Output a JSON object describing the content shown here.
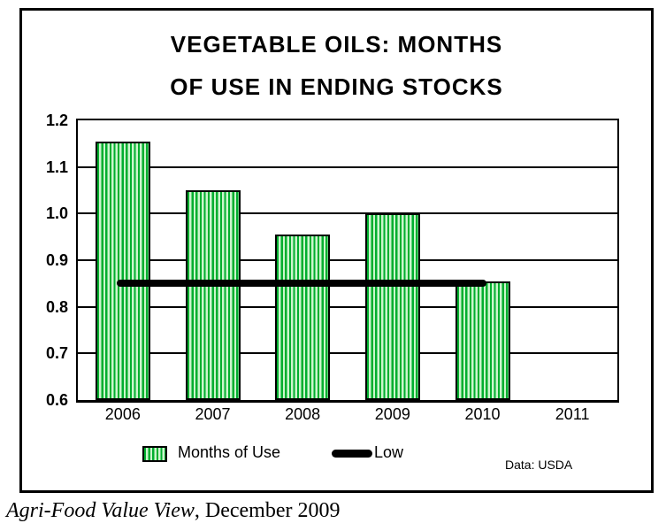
{
  "colors": {
    "bar_stripe_dark": "#00AE2E",
    "bar_stripe_light": "#CCF5CC",
    "line_color": "#000000",
    "text_color": "#000000",
    "background": "#ffffff"
  },
  "chart_data": {
    "type": "bar",
    "title": "VEGETABLE OILS: MONTHS OF USE IN ENDING STOCKS",
    "title_lines": [
      "VEGETABLE OILS: MONTHS",
      "OF USE IN ENDING STOCKS"
    ],
    "categories": [
      "2006",
      "2007",
      "2008",
      "2009",
      "2010",
      "2011"
    ],
    "series": [
      {
        "name": "Months of Use",
        "values": [
          1.155,
          1.05,
          0.955,
          1.0,
          0.855,
          null
        ]
      }
    ],
    "low_line": {
      "name": "Low",
      "value": 0.85,
      "start_category": 0,
      "end_category": 4
    },
    "xlabel": "",
    "ylabel": "",
    "ylim": [
      0.6,
      1.2
    ],
    "ytick_step": 0.1,
    "yticks": [
      "1.2",
      "1.1",
      "1.0",
      "0.9",
      "0.8",
      "0.7",
      "0.6"
    ],
    "grid": true,
    "legend_position": "bottom",
    "bar_fill": "green vertical stripes"
  },
  "legend": {
    "months_label": "Months of Use",
    "low_label": "Low"
  },
  "source_note": "Data: USDA",
  "footer": {
    "italic_part": "Agri-Food Value View",
    "regular_part": ", December 2009"
  }
}
